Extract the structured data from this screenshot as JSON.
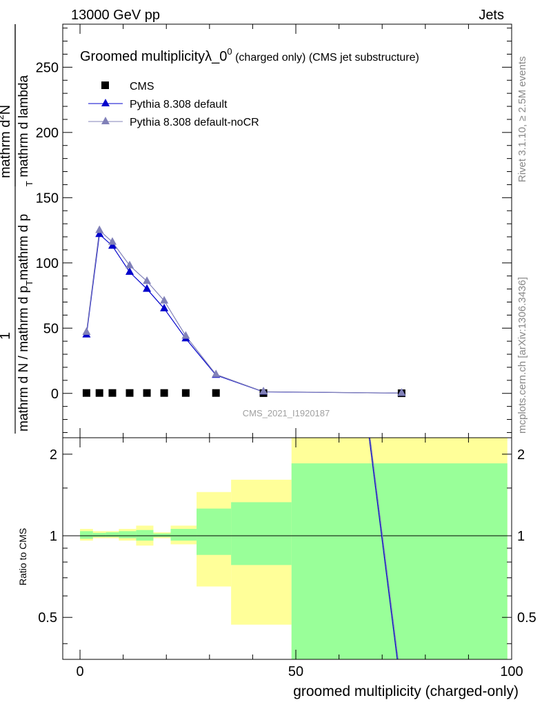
{
  "header": {
    "left": "13000 GeV pp",
    "right": "Jets"
  },
  "side_labels": {
    "rivet": "Rivet 3.1.10, ≥ 2.5M events",
    "mcplots": "mcplots.cern.ch [arXiv:1306.3436]"
  },
  "watermark": "CMS_2021_I1920187",
  "chart_data": [
    {
      "type": "scatter",
      "title_main": "Groomed multiplicityλ_0",
      "title_sup": "0",
      "title_tail": " (charged only) (CMS jet substructure)",
      "ylabel_parts": {
        "numerator": "1",
        "denominator": "mathrm d N / mathrm d p",
        "den_sub": "T",
        "den_tail": "mathrm d p",
        "den_sub2": "T",
        "den_tail2": " mathrm d lambda",
        "frac2_num": "mathrm d",
        "frac2_sup": "2",
        "frac2_num_tail": "N"
      },
      "ylim": [
        -34,
        283
      ],
      "yticks": [
        0,
        50,
        100,
        150,
        200,
        250
      ],
      "xlim": [
        -4,
        100
      ],
      "legend": {
        "position": "top-left",
        "entries": [
          "CMS",
          "Pythia 8.308 default",
          "Pythia 8.308 default-noCR"
        ]
      },
      "series": [
        {
          "name": "CMS",
          "color": "#000000",
          "marker": "square",
          "x": [
            1.5,
            4.5,
            7.5,
            11.5,
            15.5,
            19.5,
            24.5,
            31.5,
            42.5,
            74.5
          ],
          "y": [
            0.3,
            0.3,
            0.3,
            0.3,
            0.3,
            0.3,
            0.3,
            0.3,
            0.2,
            0.1
          ]
        },
        {
          "name": "Pythia 8.308 default",
          "color": "#0000cc",
          "marker": "triangle",
          "x": [
            1.5,
            4.5,
            7.5,
            11.5,
            15.5,
            19.5,
            24.5,
            31.5,
            42.5,
            74.5
          ],
          "y": [
            45,
            122,
            113,
            93,
            80,
            65,
            42,
            14,
            1.2,
            0.2
          ]
        },
        {
          "name": "Pythia 8.308 default-noCR",
          "color": "#8080b8",
          "marker": "triangle",
          "x": [
            1.5,
            4.5,
            7.5,
            11.5,
            15.5,
            19.5,
            24.5,
            31.5,
            42.5,
            74.5
          ],
          "y": [
            47,
            125,
            116,
            98,
            86,
            71,
            44,
            14.5,
            1.3,
            0.2
          ]
        }
      ]
    },
    {
      "type": "line",
      "ylabel": "Ratio to CMS",
      "xlabel": "groomed multiplicity (charged-only)",
      "xlim": [
        -4,
        100
      ],
      "xticks": [
        0,
        50,
        100
      ],
      "ylim": [
        0.35,
        2.3
      ],
      "yscale": "log",
      "yticks": [
        0.5,
        1,
        2
      ],
      "reference_line": 1,
      "bins": [
        {
          "lo": 0,
          "hi": 3,
          "band_yellow": [
            0.96,
            1.06
          ],
          "band_green": [
            0.975,
            1.04
          ]
        },
        {
          "lo": 3,
          "hi": 6,
          "band_yellow": [
            0.98,
            1.04
          ],
          "band_green": [
            0.99,
            1.025
          ]
        },
        {
          "lo": 6,
          "hi": 9,
          "band_yellow": [
            0.98,
            1.04
          ],
          "band_green": [
            0.99,
            1.03
          ]
        },
        {
          "lo": 9,
          "hi": 13,
          "band_yellow": [
            0.96,
            1.06
          ],
          "band_green": [
            0.98,
            1.04
          ]
        },
        {
          "lo": 13,
          "hi": 17,
          "band_yellow": [
            0.92,
            1.09
          ],
          "band_green": [
            0.96,
            1.05
          ]
        },
        {
          "lo": 17,
          "hi": 21,
          "band_yellow": [
            0.98,
            1.03
          ],
          "band_green": [
            0.99,
            1.02
          ]
        },
        {
          "lo": 21,
          "hi": 27,
          "band_yellow": [
            0.93,
            1.09
          ],
          "band_green": [
            0.96,
            1.06
          ]
        },
        {
          "lo": 27,
          "hi": 35,
          "band_yellow": [
            0.65,
            1.45
          ],
          "band_green": [
            0.85,
            1.26
          ]
        },
        {
          "lo": 35,
          "hi": 49,
          "band_yellow": [
            0.47,
            1.61
          ],
          "band_green": [
            0.78,
            1.33
          ]
        },
        {
          "lo": 49,
          "hi": 99,
          "band_yellow": [
            0.3,
            3.0
          ],
          "band_green": [
            0.3,
            1.85
          ]
        }
      ],
      "colors": {
        "yellow": "#ffff99",
        "green": "#99ff99"
      },
      "series": [
        {
          "name": "Pythia 8.308 default",
          "color": "#0000cc",
          "x": [
            67,
            73.5
          ],
          "y": [
            2.6,
            0.33
          ]
        },
        {
          "name": "Pythia 8.308 default-noCR",
          "color": "#8080b8",
          "x": [
            67.2,
            73.7
          ],
          "y": [
            2.6,
            0.33
          ]
        }
      ]
    }
  ]
}
